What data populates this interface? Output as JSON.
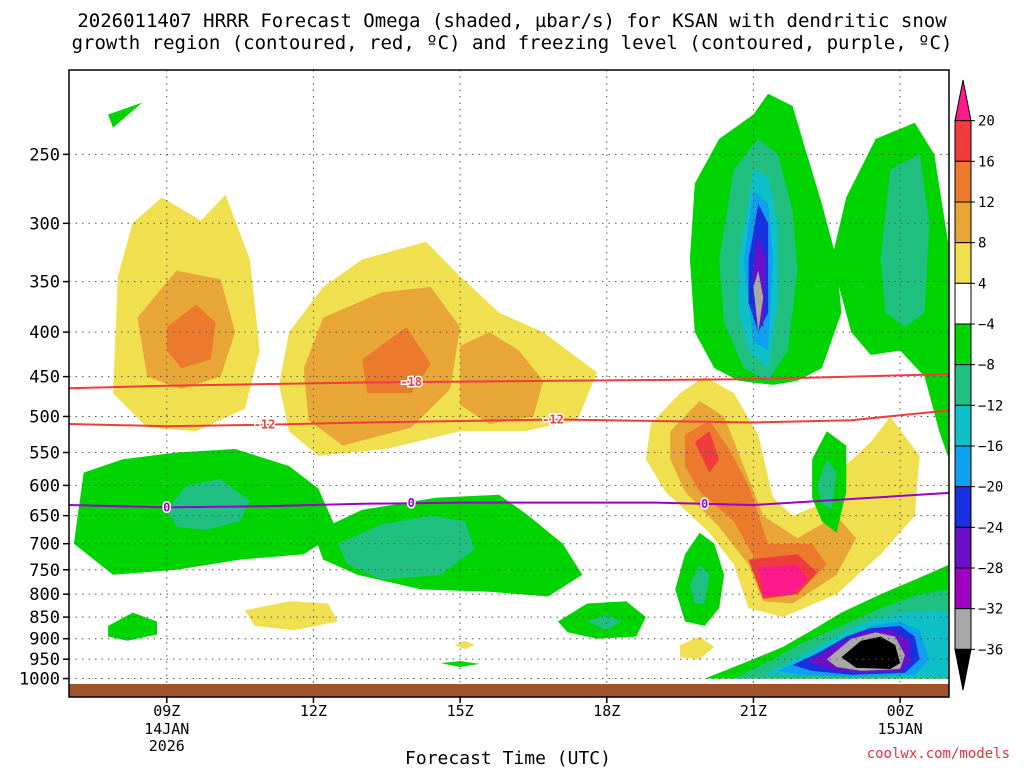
{
  "title_line1": "2026011407 HRRR Forecast Omega (shaded, µbar/s) for KSAN with dendritic snow",
  "title_line2": "growth region (contoured, red, ºC) and freezing level (contoured, purple, ºC)",
  "credit": "coolwx.com/models",
  "chart_data": {
    "type": "heatmap",
    "title": "2026011407 HRRR Forecast Omega (shaded, µbar/s) for KSAN with dendritic snow growth region (contoured, red, ºC) and freezing level (contoured, purple, ºC)",
    "xlabel": "Forecast Time (UTC)",
    "ylabel": "",
    "x_range_hours": [
      7,
      25
    ],
    "x_ticks": [
      {
        "hour": 9,
        "label": "09Z",
        "sub1": "14JAN",
        "sub2": "2026"
      },
      {
        "hour": 12,
        "label": "12Z",
        "sub1": "",
        "sub2": ""
      },
      {
        "hour": 15,
        "label": "15Z",
        "sub1": "",
        "sub2": ""
      },
      {
        "hour": 18,
        "label": "18Z",
        "sub1": "",
        "sub2": ""
      },
      {
        "hour": 21,
        "label": "21Z",
        "sub1": "",
        "sub2": ""
      },
      {
        "hour": 24,
        "label": "00Z",
        "sub1": "15JAN",
        "sub2": ""
      }
    ],
    "y_scale": "log-pressure",
    "y_range_hpa": [
      1050,
      200
    ],
    "y_ticks": [
      250,
      300,
      350,
      400,
      450,
      500,
      550,
      600,
      650,
      700,
      750,
      800,
      850,
      900,
      950,
      1000
    ],
    "colorbar": {
      "labels": [
        "20",
        "16",
        "12",
        "8",
        "4",
        "−4",
        "−8",
        "−12",
        "−16",
        "−20",
        "−24",
        "−28",
        "−32",
        "−36"
      ],
      "colors": [
        "#ff1a8c",
        "#f03c3c",
        "#ec7a2c",
        "#e8a636",
        "#f0e050",
        "#ffffff",
        "#00d400",
        "#20c080",
        "#10c0c8",
        "#10a0f0",
        "#1830e0",
        "#6a10c8",
        "#a000c0",
        "#a8a8a8",
        "#000000"
      ]
    },
    "omega_features": [
      {
        "hour": 9.7,
        "hpa": 400,
        "max": 12,
        "note": "upward-positive maximum near 400 hPa"
      },
      {
        "hour": 14.0,
        "hpa": 430,
        "max": 12
      },
      {
        "hour": 15.6,
        "hpa": 450,
        "max": 4
      },
      {
        "hour": 19.9,
        "hpa": 530,
        "max": 16
      },
      {
        "hour": 21.2,
        "hpa": 770,
        "max": 20
      },
      {
        "hour": 21.0,
        "hpa": 360,
        "min": -32
      },
      {
        "hour": 23.3,
        "hpa": 940,
        "min": -36
      },
      {
        "hour": 9.8,
        "hpa": 630,
        "min": -12
      },
      {
        "hour": 14.0,
        "hpa": 710,
        "min": -12
      },
      {
        "hour": 22.2,
        "hpa": 580,
        "min": -16
      }
    ],
    "series": [
      {
        "name": "-18 ºC",
        "color": "#f03c3c",
        "label": "-18",
        "hours": [
          7,
          9,
          11,
          13,
          15,
          17,
          19,
          21,
          23,
          25
        ],
        "hpa": [
          464,
          461,
          459,
          457,
          456,
          455,
          454,
          453,
          450,
          447
        ]
      },
      {
        "name": "-12 ºC",
        "color": "#f03c3c",
        "label": "-12",
        "hours": [
          7,
          9,
          11,
          13,
          15,
          17,
          19,
          21,
          23,
          25
        ],
        "hpa": [
          510,
          513,
          511,
          508,
          506,
          504,
          506,
          508,
          505,
          492
        ]
      },
      {
        "name": "0 ºC",
        "color": "#9a00c8",
        "label": "0",
        "hours": [
          7,
          9,
          11,
          13,
          15,
          17,
          19,
          21,
          23,
          25
        ],
        "hpa": [
          632,
          636,
          634,
          630,
          628,
          628,
          628,
          632,
          622,
          612
        ]
      }
    ],
    "contour_label_hours": {
      "-18": [
        14.0
      ],
      "-12": [
        11.0,
        16.9
      ],
      "0": [
        9.0,
        14.0,
        20.0
      ]
    }
  }
}
